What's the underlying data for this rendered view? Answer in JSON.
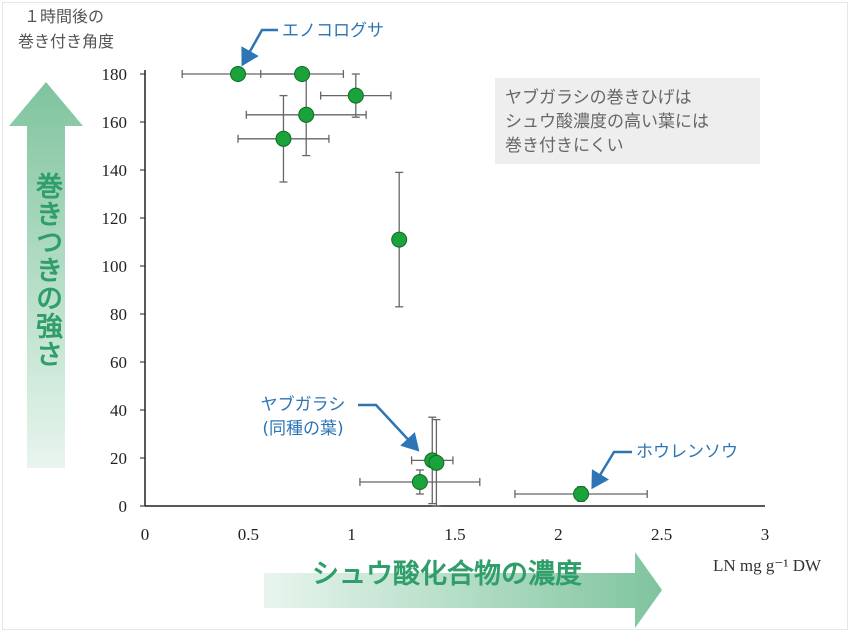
{
  "chart_data": {
    "type": "scatter",
    "ylabel_lines": [
      "１時間後の",
      "巻き付き角度"
    ],
    "xunit": "LN mg g⁻¹ DW",
    "xlim": [
      0,
      3
    ],
    "ylim": [
      0,
      180
    ],
    "xticks": [
      "0",
      "0.5",
      "1",
      "1.5",
      "2",
      "2.5",
      "3"
    ],
    "yticks": [
      "0",
      "20",
      "40",
      "60",
      "80",
      "100",
      "120",
      "140",
      "160",
      "180"
    ],
    "points": [
      {
        "x": 0.45,
        "y": 180,
        "xerr": [
          0.27,
          0.28
        ],
        "yerr": [
          0,
          0
        ]
      },
      {
        "x": 0.76,
        "y": 180,
        "xerr": [
          0.2,
          0.2
        ],
        "yerr": [
          0,
          0
        ]
      },
      {
        "x": 1.02,
        "y": 171,
        "xerr": [
          0.17,
          0.17
        ],
        "yerr": [
          9,
          9
        ]
      },
      {
        "x": 0.78,
        "y": 163,
        "xerr": [
          0.29,
          0.29
        ],
        "yerr": [
          17,
          17
        ]
      },
      {
        "x": 0.67,
        "y": 153,
        "xerr": [
          0.22,
          0.22
        ],
        "yerr": [
          18,
          18
        ]
      },
      {
        "x": 1.23,
        "y": 111,
        "xerr": [
          0,
          0
        ],
        "yerr": [
          28,
          28
        ]
      },
      {
        "x": 1.39,
        "y": 19,
        "xerr": [
          0.1,
          0.1
        ],
        "yerr": [
          18,
          18
        ]
      },
      {
        "x": 1.41,
        "y": 18,
        "xerr": [
          0,
          0
        ],
        "yerr": [
          18,
          18
        ]
      },
      {
        "x": 1.33,
        "y": 10,
        "xerr": [
          0.29,
          0.29
        ],
        "yerr": [
          5,
          5
        ]
      },
      {
        "x": 2.11,
        "y": 5,
        "xerr": [
          0.32,
          0.32
        ],
        "yerr": [
          3,
          3
        ]
      }
    ],
    "annotations": [
      {
        "text": "エノコログサ",
        "target_index": 0
      },
      {
        "text_lines": [
          "ヤブガラシ",
          "(同種の葉)"
        ],
        "target_index": 6
      },
      {
        "text": "ホウレンソウ",
        "target_index": 9
      }
    ],
    "note_lines": [
      "ヤブガラシの巻きひげは",
      "シュウ酸濃度の高い葉には",
      "巻き付きにくい"
    ],
    "vertical_arrow_label": "巻きつきの強さ",
    "horizontal_arrow_label": "シュウ酸化合物の濃度"
  },
  "colors": {
    "marker_fill": "#1aa33a",
    "marker_stroke": "#0d6b22",
    "annotation": "#2e75b6",
    "arrow_label": "#2f9e6a",
    "arrow_gradient_start": "#e8f5ee",
    "arrow_gradient_end": "#7fc49e",
    "note_bg": "#eeeeee",
    "note_text": "#666666"
  }
}
